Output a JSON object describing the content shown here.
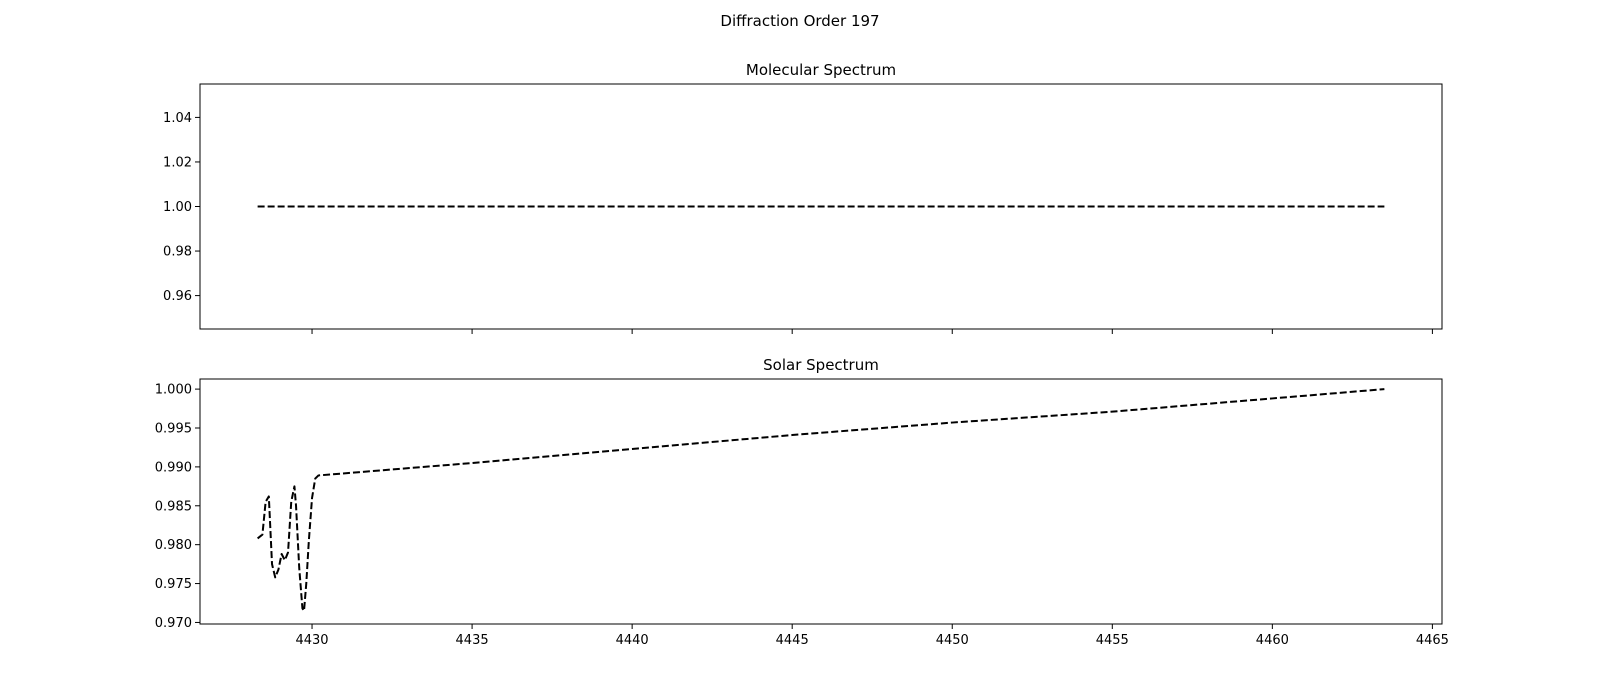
{
  "figure": {
    "suptitle": "Diffraction Order 197"
  },
  "chart_data": [
    {
      "type": "line",
      "title": "Molecular Spectrum",
      "xlabel": "",
      "ylabel": "",
      "xlim": [
        4426.5,
        4465.3
      ],
      "ylim": [
        0.945,
        1.055
      ],
      "xticks": [
        4430,
        4435,
        4440,
        4445,
        4450,
        4455,
        4460,
        4465
      ],
      "xtick_labels_visible": false,
      "yticks": [
        0.96,
        0.98,
        1.0,
        1.02,
        1.04
      ],
      "ytick_labels": [
        "0.96",
        "0.98",
        "1.00",
        "1.02",
        "1.04"
      ],
      "grid": false,
      "line_style": "dashed",
      "line_color": "#000000",
      "series": [
        {
          "x": [
            4428.3,
            4463.5
          ],
          "y": [
            1.0,
            1.0
          ]
        }
      ]
    },
    {
      "type": "line",
      "title": "Solar Spectrum",
      "xlabel": "",
      "ylabel": "",
      "xlim": [
        4426.5,
        4465.3
      ],
      "ylim": [
        0.9698,
        1.0013
      ],
      "xticks": [
        4430,
        4435,
        4440,
        4445,
        4450,
        4455,
        4460,
        4465
      ],
      "xtick_labels": [
        "4430",
        "4435",
        "4440",
        "4445",
        "4450",
        "4455",
        "4460",
        "4465"
      ],
      "yticks": [
        0.97,
        0.975,
        0.98,
        0.985,
        0.99,
        0.995,
        1.0
      ],
      "ytick_labels": [
        "0.970",
        "0.975",
        "0.980",
        "0.985",
        "0.990",
        "0.995",
        "1.000"
      ],
      "grid": false,
      "line_style": "dashed",
      "line_color": "#000000",
      "series": [
        {
          "x": [
            4428.3,
            4428.45,
            4428.55,
            4428.65,
            4428.75,
            4428.85,
            4428.95,
            4429.05,
            4429.15,
            4429.25,
            4429.35,
            4429.45,
            4429.5,
            4429.6,
            4429.7,
            4429.75,
            4429.82,
            4429.9,
            4430.0,
            4430.1,
            4430.2,
            4435,
            4440,
            4445,
            4450,
            4455,
            4460,
            4463.5
          ],
          "y": [
            0.9808,
            0.9813,
            0.9855,
            0.9862,
            0.9775,
            0.9758,
            0.9768,
            0.9788,
            0.978,
            0.979,
            0.9855,
            0.9875,
            0.985,
            0.977,
            0.9718,
            0.9715,
            0.975,
            0.9805,
            0.986,
            0.9885,
            0.9889,
            0.9905,
            0.9923,
            0.9941,
            0.9957,
            0.9971,
            0.9988,
            1.0
          ]
        }
      ]
    }
  ]
}
